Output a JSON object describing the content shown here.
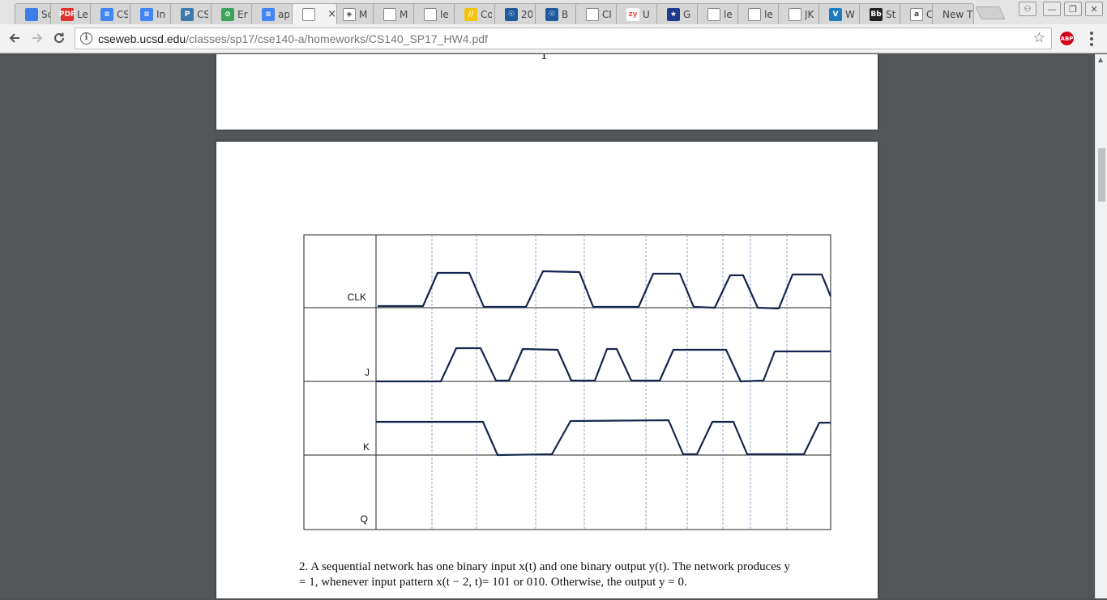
{
  "browser": {
    "tabs": [
      {
        "title": "Sc",
        "icon": "sheets-icon",
        "color": "#3b7de6",
        "glyph": ""
      },
      {
        "title": "Le",
        "icon": "pdf-icon",
        "color": "#e0312b",
        "glyph": "PDF"
      },
      {
        "title": "CS",
        "icon": "docs-icon",
        "color": "#4285f4",
        "glyph": "≡"
      },
      {
        "title": "In",
        "icon": "docs-icon",
        "color": "#4285f4",
        "glyph": "≡"
      },
      {
        "title": "CS",
        "icon": "piazza-icon",
        "color": "#3e7aab",
        "glyph": "P"
      },
      {
        "title": "Er",
        "icon": "green-circle-icon",
        "color": "#3da35a",
        "glyph": "⊘"
      },
      {
        "title": "ap",
        "icon": "docs-icon",
        "color": "#4285f4",
        "glyph": "≡"
      },
      {
        "title": "",
        "icon": "page-icon",
        "color": "#ffffff",
        "glyph": "",
        "active": true
      },
      {
        "title": "M",
        "icon": "diamond-icon",
        "color": "#ffffff",
        "glyph": "◈"
      },
      {
        "title": "M",
        "icon": "page-icon",
        "color": "#ffffff",
        "glyph": ""
      },
      {
        "title": "le",
        "icon": "page-icon",
        "color": "#ffffff",
        "glyph": ""
      },
      {
        "title": "Co",
        "icon": "stripes-icon",
        "color": "#f1c40f",
        "glyph": "//"
      },
      {
        "title": "20",
        "icon": "ucsd-icon",
        "color": "#1f5a9e",
        "glyph": "☉"
      },
      {
        "title": "B",
        "icon": "ucsd-icon",
        "color": "#1f5a9e",
        "glyph": "☉"
      },
      {
        "title": "Cl",
        "icon": "page-icon",
        "color": "#ffffff",
        "glyph": ""
      },
      {
        "title": "U",
        "icon": "zybooks-icon",
        "color": "#ffffff",
        "glyph": "zy"
      },
      {
        "title": "G",
        "icon": "star-badge-icon",
        "color": "#1e3a8a",
        "glyph": "★"
      },
      {
        "title": "le",
        "icon": "page-icon",
        "color": "#ffffff",
        "glyph": ""
      },
      {
        "title": "le",
        "icon": "page-icon",
        "color": "#ffffff",
        "glyph": ""
      },
      {
        "title": "JK",
        "icon": "page-icon",
        "color": "#ffffff",
        "glyph": ""
      },
      {
        "title": "W",
        "icon": "v-icon",
        "color": "#1c7cbf",
        "glyph": "V"
      },
      {
        "title": "St",
        "icon": "blackboard-icon",
        "color": "#222222",
        "glyph": "Bb"
      },
      {
        "title": "Cl",
        "icon": "ams-icon",
        "color": "#ffffff",
        "glyph": "a"
      },
      {
        "title": "New T",
        "icon": "",
        "color": "",
        "glyph": ""
      }
    ],
    "active_tab_close": "×",
    "url_host": "cseweb.ucsd.edu",
    "url_path": "/classes/sp17/cse140-a/homeworks/CS140_SP17_HW4.pdf",
    "adblock_label": "ABP"
  },
  "pdf": {
    "prev_page_number": "1",
    "signal_labels": [
      "CLK",
      "J",
      "K",
      "Q"
    ],
    "question_number": "2.",
    "question_text": "A sequential network has one binary input x(t) and one binary output y(t). The network produces y = 1, whenever input pattern x(t − 2, t)= 101 or 010. Otherwise, the output y = 0."
  }
}
